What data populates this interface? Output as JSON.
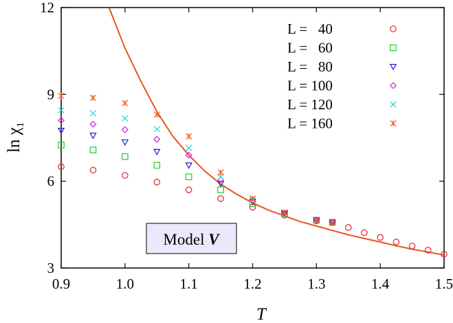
{
  "chart_data": {
    "type": "scatter",
    "xlabel": "T",
    "ylabel": "ln χ",
    "ylabel_subscript": "1",
    "xlim": [
      0.9,
      1.5
    ],
    "ylim": [
      3,
      12
    ],
    "xticks": [
      "0.9",
      "1.0",
      "1.1",
      "1.2",
      "1.3",
      "1.4",
      "1.5"
    ],
    "xtick_values": [
      0.9,
      1.0,
      1.1,
      1.2,
      1.3,
      1.4,
      1.5
    ],
    "yticks": [
      "3",
      "6",
      "9",
      "12"
    ],
    "ytick_values": [
      3,
      6,
      9,
      12
    ],
    "grid": false,
    "legend_position": "top-right",
    "annotation": {
      "prefix": "Model ",
      "emphasis": "V"
    },
    "series": [
      {
        "name": "L =   40",
        "marker": "circle",
        "color": "#e8202a",
        "x": [
          0.9,
          0.95,
          1.0,
          1.05,
          1.1,
          1.15,
          1.2,
          1.25,
          1.3,
          1.325
        ],
        "y": [
          6.5,
          6.38,
          6.2,
          5.97,
          5.7,
          5.4,
          5.1,
          4.83,
          4.63,
          4.57
        ]
      },
      {
        "name": "L =   60",
        "marker": "square",
        "color": "#22cc22",
        "x": [
          0.9,
          0.95,
          1.0,
          1.05,
          1.1,
          1.15,
          1.2,
          1.25,
          1.3,
          1.325
        ],
        "y": [
          7.25,
          7.08,
          6.85,
          6.55,
          6.15,
          5.7,
          5.22,
          4.88,
          4.65,
          4.58
        ]
      },
      {
        "name": "L =   80",
        "marker": "triangle-down",
        "color": "#1f1fd0",
        "x": [
          0.9,
          0.95,
          1.0,
          1.05,
          1.1,
          1.15,
          1.2,
          1.25,
          1.3,
          1.325
        ],
        "y": [
          7.75,
          7.58,
          7.35,
          7.02,
          6.55,
          5.92,
          5.3,
          4.9,
          4.66,
          4.58
        ]
      },
      {
        "name": "L = 100",
        "marker": "diamond",
        "color": "#d11fd1",
        "x": [
          0.9,
          0.95,
          1.0,
          1.05,
          1.1,
          1.15,
          1.2,
          1.25,
          1.3,
          1.325
        ],
        "y": [
          8.1,
          7.97,
          7.78,
          7.45,
          6.9,
          6.05,
          5.33,
          4.9,
          4.66,
          4.58
        ]
      },
      {
        "name": "L = 120",
        "marker": "x",
        "color": "#22d6d6",
        "x": [
          0.9,
          0.95,
          1.0,
          1.05,
          1.1,
          1.15,
          1.2,
          1.25,
          1.3,
          1.325
        ],
        "y": [
          8.45,
          8.35,
          8.17,
          7.8,
          7.15,
          6.15,
          5.36,
          4.91,
          4.66,
          4.58
        ]
      },
      {
        "name": "L = 160",
        "marker": "asterisk",
        "color": "#f25a1c",
        "x": [
          0.9,
          0.95,
          1.0,
          1.05,
          1.1,
          1.15,
          1.2,
          1.25,
          1.3,
          1.325
        ],
        "y": [
          8.95,
          8.88,
          8.7,
          8.3,
          7.55,
          6.3,
          5.4,
          4.92,
          4.66,
          4.58
        ]
      },
      {
        "name": "",
        "marker": "circle",
        "color": "#e8202a",
        "x": [
          1.35,
          1.375,
          1.4,
          1.425,
          1.45,
          1.475,
          1.5
        ],
        "y": [
          4.4,
          4.22,
          4.06,
          3.9,
          3.76,
          3.62,
          3.48
        ]
      }
    ],
    "fit_curve": {
      "color": "#e8541c",
      "x": [
        0.975,
        1.0,
        1.025,
        1.05,
        1.075,
        1.1,
        1.125,
        1.15,
        1.175,
        1.2,
        1.225,
        1.25,
        1.275,
        1.3,
        1.325,
        1.35,
        1.375,
        1.4,
        1.425,
        1.45,
        1.475,
        1.5
      ],
      "y": [
        12.0,
        10.6,
        9.45,
        8.4,
        7.55,
        6.9,
        6.35,
        5.9,
        5.55,
        5.25,
        5.0,
        4.8,
        4.6,
        4.45,
        4.3,
        4.15,
        4.02,
        3.9,
        3.77,
        3.65,
        3.55,
        3.45
      ]
    }
  }
}
